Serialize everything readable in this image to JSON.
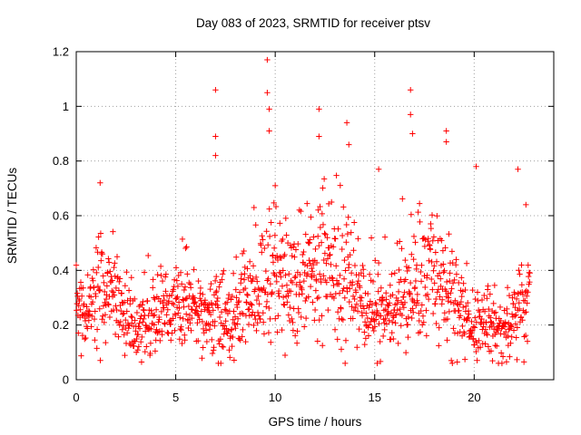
{
  "chart_data": {
    "type": "scatter",
    "title": "Day 083 of 2023, SRMTID for receiver ptsv",
    "xlabel": "GPS time / hours",
    "ylabel": "SRMTID / TECUs",
    "xlim": [
      0,
      24
    ],
    "ylim": [
      0,
      1.2
    ],
    "xticks": [
      0,
      5,
      10,
      15,
      20
    ],
    "xtick_labels": [
      "0",
      "5",
      "10",
      "15",
      "20"
    ],
    "yticks": [
      0,
      0.2,
      0.4,
      0.6,
      0.8,
      1,
      1.2
    ],
    "ytick_labels": [
      "0",
      "0.2",
      "0.4",
      "0.6",
      "0.8",
      "1",
      "1.2"
    ],
    "grid": true,
    "marker": "+",
    "marker_color": "#ff0000",
    "series": [
      {
        "name": "SRMTID",
        "profile_x": [
          0,
          0.5,
          1,
          1.5,
          2,
          2.5,
          3,
          3.5,
          4,
          4.5,
          5,
          5.5,
          6,
          6.5,
          7,
          7.5,
          8,
          8.5,
          9,
          9.5,
          10,
          10.5,
          11,
          11.5,
          12,
          12.5,
          13,
          13.5,
          14,
          14.5,
          15,
          15.5,
          16,
          16.5,
          17,
          17.5,
          18,
          18.5,
          19,
          19.5,
          20,
          20.5,
          21,
          21.5,
          22,
          22.5,
          22.8
        ],
        "profile_median": [
          0.28,
          0.22,
          0.32,
          0.33,
          0.3,
          0.24,
          0.17,
          0.19,
          0.22,
          0.25,
          0.27,
          0.3,
          0.24,
          0.22,
          0.25,
          0.22,
          0.25,
          0.28,
          0.3,
          0.36,
          0.42,
          0.36,
          0.33,
          0.38,
          0.4,
          0.42,
          0.34,
          0.36,
          0.32,
          0.28,
          0.22,
          0.24,
          0.28,
          0.3,
          0.34,
          0.38,
          0.4,
          0.34,
          0.3,
          0.24,
          0.18,
          0.22,
          0.2,
          0.18,
          0.22,
          0.3,
          0.32
        ],
        "profile_spread": [
          0.08,
          0.07,
          0.12,
          0.13,
          0.1,
          0.08,
          0.06,
          0.07,
          0.08,
          0.08,
          0.09,
          0.11,
          0.09,
          0.08,
          0.1,
          0.08,
          0.09,
          0.1,
          0.1,
          0.13,
          0.16,
          0.14,
          0.12,
          0.14,
          0.16,
          0.17,
          0.14,
          0.14,
          0.12,
          0.1,
          0.08,
          0.09,
          0.11,
          0.12,
          0.14,
          0.15,
          0.15,
          0.13,
          0.11,
          0.09,
          0.07,
          0.08,
          0.08,
          0.07,
          0.08,
          0.12,
          0.12
        ],
        "peaks": [
          {
            "x": 1.2,
            "y": 0.72
          },
          {
            "x": 7.0,
            "y": 1.06
          },
          {
            "x": 7.0,
            "y": 0.89
          },
          {
            "x": 7.0,
            "y": 0.82
          },
          {
            "x": 9.6,
            "y": 1.17
          },
          {
            "x": 9.6,
            "y": 1.05
          },
          {
            "x": 9.7,
            "y": 0.99
          },
          {
            "x": 9.7,
            "y": 0.91
          },
          {
            "x": 10.0,
            "y": 0.71
          },
          {
            "x": 12.2,
            "y": 0.99
          },
          {
            "x": 12.2,
            "y": 0.89
          },
          {
            "x": 13.6,
            "y": 0.94
          },
          {
            "x": 13.7,
            "y": 0.86
          },
          {
            "x": 15.2,
            "y": 0.77
          },
          {
            "x": 16.8,
            "y": 1.06
          },
          {
            "x": 16.8,
            "y": 0.97
          },
          {
            "x": 16.9,
            "y": 0.9
          },
          {
            "x": 18.6,
            "y": 0.91
          },
          {
            "x": 18.6,
            "y": 0.87
          },
          {
            "x": 20.1,
            "y": 0.78
          },
          {
            "x": 22.2,
            "y": 0.77
          },
          {
            "x": 22.6,
            "y": 0.64
          }
        ]
      }
    ]
  }
}
